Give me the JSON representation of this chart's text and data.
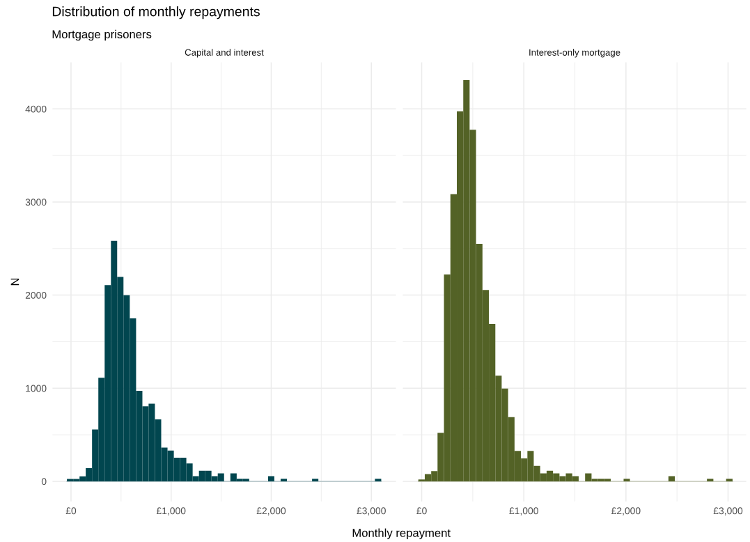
{
  "chart_data": [
    {
      "type": "histogram",
      "title": "Capital and interest",
      "xlabel": "Monthly repayment",
      "ylabel": "N",
      "annotations": [
        "Distribution of monthly repayments",
        "Mortgage prisoners"
      ],
      "color": "#01464f",
      "bins": [
        -41,
        22,
        85,
        147,
        210,
        273,
        336,
        399,
        461,
        524,
        587,
        650,
        713,
        775,
        838,
        901,
        964,
        1027,
        1089,
        1152,
        1215,
        1278,
        1341,
        1403,
        1466,
        1529,
        1592,
        1655,
        1717,
        1780,
        1843,
        1906,
        1969,
        2031,
        2094,
        2157,
        2220,
        2283,
        2345,
        2408,
        2471,
        2534,
        2597,
        2659,
        2722,
        2785,
        2848,
        2911,
        2973,
        3036,
        3099
      ],
      "values": [
        25,
        25,
        54,
        141,
        557,
        1112,
        2108,
        2582,
        2196,
        1999,
        1751,
        972,
        806,
        833,
        666,
        362,
        331,
        253,
        253,
        192,
        56,
        114,
        114,
        56,
        85,
        0,
        85,
        27,
        27,
        0,
        0,
        0,
        56,
        0,
        27,
        0,
        0,
        0,
        0,
        27,
        0,
        0,
        0,
        0,
        0,
        0,
        0,
        0,
        0,
        27
      ],
      "xlim": [
        -185,
        3246
      ],
      "ylim": [
        -215,
        4500
      ],
      "xticks": [
        {
          "value": 0,
          "label": "£0"
        },
        {
          "value": 1000,
          "label": "£1,000"
        },
        {
          "value": 2000,
          "label": "£2,000"
        },
        {
          "value": 3000,
          "label": "£3,000"
        }
      ],
      "yticks": [
        0,
        1000,
        2000,
        3000,
        4000
      ],
      "grid": true
    },
    {
      "type": "histogram",
      "title": "Interest-only mortgage",
      "color": "#536226",
      "bins": [
        -33,
        30,
        93,
        155,
        218,
        281,
        344,
        407,
        469,
        532,
        595,
        658,
        721,
        783,
        846,
        909,
        972,
        1035,
        1097,
        1160,
        1223,
        1286,
        1349,
        1411,
        1474,
        1537,
        1600,
        1663,
        1725,
        1788,
        1851,
        1914,
        1977,
        2039,
        2102,
        2165,
        2228,
        2291,
        2353,
        2416,
        2479,
        2542,
        2605,
        2667,
        2730,
        2793,
        2856,
        2919,
        2981,
        3044
      ],
      "values": [
        20,
        78,
        109,
        521,
        2222,
        3083,
        3974,
        4309,
        3776,
        2551,
        2055,
        1690,
        1134,
        996,
        690,
        326,
        246,
        326,
        165,
        85,
        114,
        85,
        56,
        85,
        56,
        0,
        85,
        27,
        27,
        27,
        0,
        0,
        27,
        0,
        0,
        0,
        0,
        0,
        0,
        56,
        0,
        0,
        0,
        0,
        0,
        27,
        0,
        0,
        27
      ],
      "xlim": [
        -185,
        3178
      ],
      "ylim": [
        -215,
        4500
      ],
      "xticks": [
        {
          "value": 0,
          "label": "£0"
        },
        {
          "value": 1000,
          "label": "£1,000"
        },
        {
          "value": 2000,
          "label": "£2,000"
        },
        {
          "value": 3000,
          "label": "£3,000"
        }
      ],
      "yticks": [
        0,
        1000,
        2000,
        3000,
        4000
      ],
      "grid": true,
      "tick_labels": "x"
    }
  ]
}
